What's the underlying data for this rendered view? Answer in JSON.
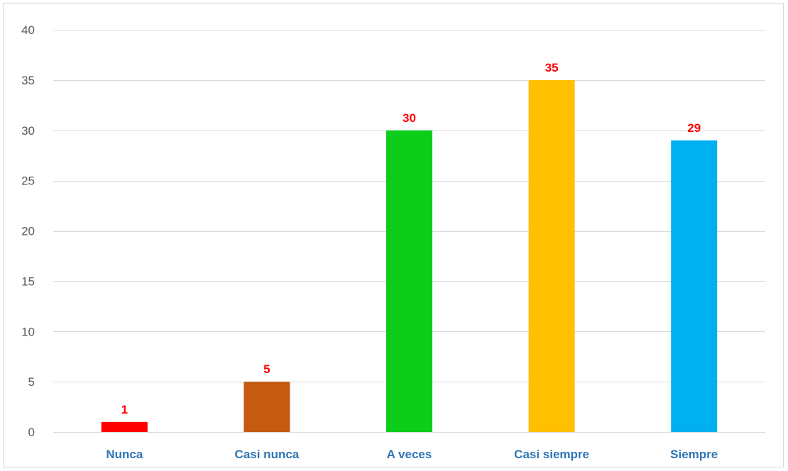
{
  "chart_data": {
    "type": "bar",
    "categories": [
      "Nunca",
      "Casi nunca",
      "A veces",
      "Casi siempre",
      "Siempre"
    ],
    "values": [
      1,
      5,
      30,
      35,
      29
    ],
    "bar_colors": [
      "#ff0000",
      "#c55a11",
      "#0dcc1a",
      "#ffc000",
      "#00b0f0"
    ],
    "data_label_color": "#ff0000",
    "category_label_color": "#2e75b6",
    "axis_label_color": "#595959",
    "gridline_color": "#d9d9d9",
    "title": "",
    "xlabel": "",
    "ylabel": "",
    "ylim": [
      0,
      40
    ],
    "yticks": [
      0,
      5,
      10,
      15,
      20,
      25,
      30,
      35,
      40
    ],
    "grid": true,
    "legend": "none"
  }
}
